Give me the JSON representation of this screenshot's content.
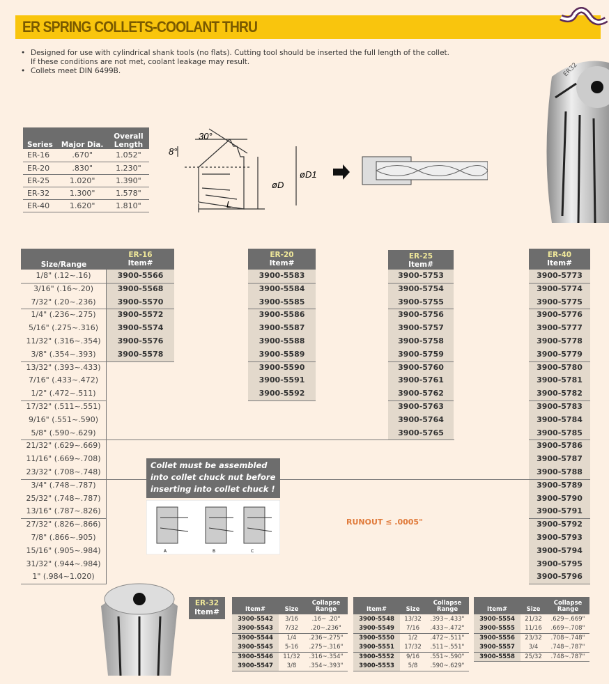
{
  "header": {
    "title": "ER SPRING COLLETS-COOLANT THRU",
    "accent": "#f9c50d"
  },
  "bullets": [
    "Designed for use with cylindrical shank tools (no flats). Cutting tool should be inserted the full length of the collet. If these conditions are not met, coolant leakage may result.",
    "Collets meet DIN 6499B."
  ],
  "series_table": {
    "headers": [
      "Series",
      "Major Dia.",
      "Overall Length"
    ],
    "rows": [
      [
        "ER-16",
        ".670\"",
        "1.052\""
      ],
      [
        "ER-20",
        ".830\"",
        "1.230\""
      ],
      [
        "ER-25",
        "1.020\"",
        "1.390\""
      ],
      [
        "ER-32",
        "1.300\"",
        "1.578\""
      ],
      [
        "ER-40",
        "1.620\"",
        "1.810\""
      ]
    ]
  },
  "diagram": {
    "angle1": "30°",
    "angle2": "8°",
    "d": "øD",
    "d1": "øD1",
    "l": "L"
  },
  "main_table": {
    "size_header": "Size/Range",
    "sizes": [
      "1/8\" (.12~.16)",
      "3/16\" (.16~.20)",
      "7/32\" (.20~.236)",
      "1/4\" (.236~.275)",
      "5/16\" (.275~.316)",
      "11/32\" (.316~.354)",
      "3/8\" (.354~.393)",
      "13/32\" (.393~.433)",
      "7/16\" (.433~.472)",
      "1/2\" (.472~.511)",
      "17/32\" (.511~.551)",
      "9/16\" (.551~.590)",
      "5/8\" (.590~.629)",
      "21/32\" (.629~.669)",
      "11/16\" (.669~.708)",
      "23/32\" (.708~.748)",
      "3/4\" (.748~.787)",
      "25/32\" (.748~.787)",
      "13/16\" (.787~.826)",
      "27/32\" (.826~.866)",
      "7/8\" (.866~.905)",
      "15/16\" (.905~.984)",
      "31/32\" (.944~.984)",
      "1\" (.984~1.020)"
    ],
    "columns": [
      {
        "series": "ER-16",
        "label": "Item#",
        "items": [
          "3900-5566",
          "3900-5568",
          "3900-5570",
          "3900-5572",
          "3900-5574",
          "3900-5576",
          "3900-5578"
        ]
      },
      {
        "series": "ER-20",
        "label": "Item#",
        "items": [
          "3900-5583",
          "3900-5584",
          "3900-5585",
          "3900-5586",
          "3900-5587",
          "3900-5588",
          "3900-5589",
          "3900-5590",
          "3900-5591",
          "3900-5592"
        ]
      },
      {
        "series": "ER-25",
        "label": "Item#",
        "items": [
          "3900-5753",
          "3900-5754",
          "3900-5755",
          "3900-5756",
          "3900-5757",
          "3900-5758",
          "3900-5759",
          "3900-5760",
          "3900-5761",
          "3900-5762",
          "3900-5763",
          "3900-5764",
          "3900-5765"
        ]
      },
      {
        "series": "ER-40",
        "label": "Item#",
        "items": [
          "3900-5773",
          "3900-5774",
          "3900-5775",
          "3900-5776",
          "3900-5777",
          "3900-5778",
          "3900-5779",
          "3900-5780",
          "3900-5781",
          "3900-5782",
          "3900-5783",
          "3900-5784",
          "3900-5785",
          "3900-5786",
          "3900-5787",
          "3900-5788",
          "3900-5789",
          "3900-5790",
          "3900-5791",
          "3900-5792",
          "3900-5793",
          "3900-5794",
          "3900-5795",
          "3900-5796"
        ]
      }
    ]
  },
  "notice": "Collet must be assembled into collet chuck nut before inserting into collet chuck !",
  "assembly_steps": [
    "A",
    "B",
    "C"
  ],
  "runout": "RUNOUT ≤ .0005\"",
  "er32": {
    "series": "ER-32",
    "label": "Item#",
    "headers": [
      "Item#",
      "Size",
      "Collapse Range"
    ],
    "tables": [
      [
        [
          "3900-5542",
          "3/16",
          ".16~ .20\""
        ],
        [
          "3900-5543",
          "7/32",
          ".20~.236\""
        ],
        [
          "3900-5544",
          "1/4",
          ".236~.275\""
        ],
        [
          "3900-5545",
          "5-16",
          ".275~.316\""
        ],
        [
          "3900-5546",
          "11/32",
          ".316~.354\""
        ],
        [
          "3900-5547",
          "3/8",
          ".354~.393\""
        ]
      ],
      [
        [
          "3900-5548",
          "13/32",
          ".393~.433\""
        ],
        [
          "3900-5549",
          "7/16",
          ".433~.472\""
        ],
        [
          "3900-5550",
          "1/2",
          ".472~.511\""
        ],
        [
          "3900-5551",
          "17/32",
          ".511~.551\""
        ],
        [
          "3900-5552",
          "9/16",
          ".551~.590\""
        ],
        [
          "3900-5553",
          "5/8",
          ".590~.629\""
        ]
      ],
      [
        [
          "3900-5554",
          "21/32",
          ".629~.669\""
        ],
        [
          "3900-5555",
          "11/16",
          ".669~.708\""
        ],
        [
          "3900-5556",
          "23/32",
          ".708~.748\""
        ],
        [
          "3900-5557",
          "3/4",
          ".748~.787\""
        ],
        [
          "3900-5558",
          "25/32",
          ".748~.787\""
        ]
      ]
    ]
  },
  "collet_image_label": "ER32"
}
